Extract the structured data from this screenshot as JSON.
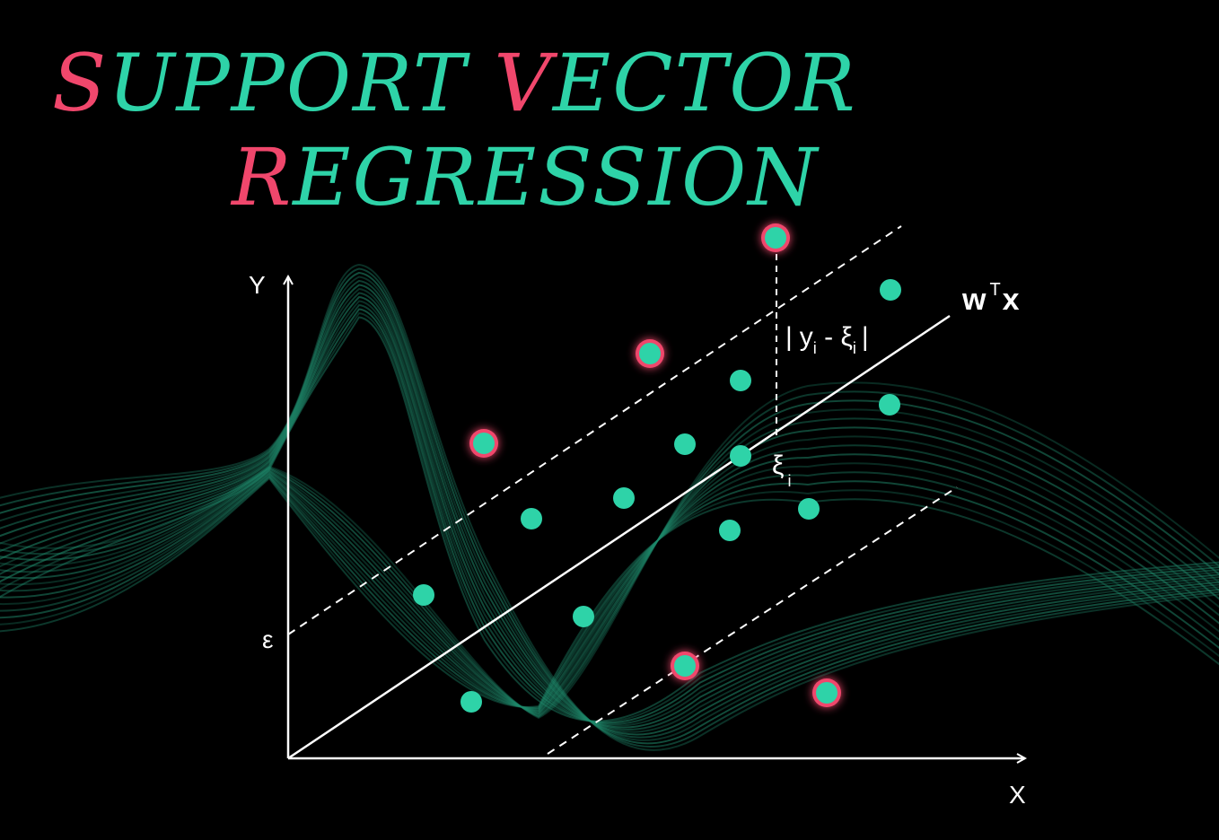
{
  "title": {
    "line1": [
      {
        "text": "S",
        "color": "#f0476c"
      },
      {
        "text": "UPPORT ",
        "color": "#2ed3a8"
      },
      {
        "text": "V",
        "color": "#f0476c"
      },
      {
        "text": "ECTOR",
        "color": "#2ed3a8"
      }
    ],
    "line2": [
      {
        "text": "R",
        "color": "#f0476c"
      },
      {
        "text": "EGRESSION",
        "color": "#2ed3a8"
      }
    ]
  },
  "axes": {
    "x_label": "X",
    "y_label": "Y",
    "epsilon_label": "ε"
  },
  "annotations": {
    "line_label_main": "w",
    "line_label_sup": "T",
    "line_label_end": "x",
    "xi_label": "ξ",
    "xi_sub": "i",
    "residual_y": "y",
    "residual_mid": " - ξ",
    "residual_sub": "i",
    "bar": "|"
  },
  "colors": {
    "background": "#000000",
    "point_fill": "#2ed3a8",
    "outlier_ring": "#f0476c",
    "wave": "#1f8a6c",
    "axis": "#ffffff"
  }
}
